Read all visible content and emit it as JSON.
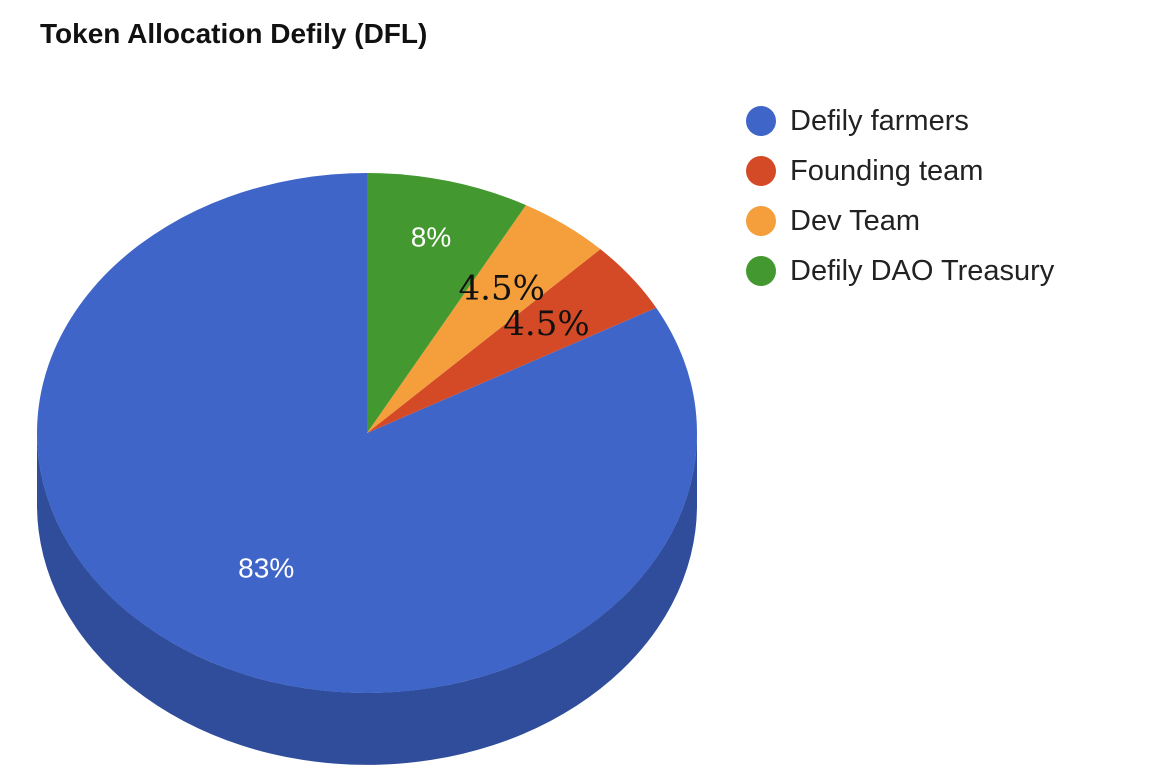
{
  "chart_data": {
    "type": "pie",
    "title": "Token Allocation Defily (DFL)",
    "legend_position": "right",
    "start_angle_deg": 0,
    "slices": [
      {
        "name": "Defily farmers",
        "value": 83,
        "label": "83%",
        "color": "#3f65c8",
        "side_color": "#2f4d9b",
        "label_color": "#ffffff",
        "label_style": "upright"
      },
      {
        "name": "Founding team",
        "value": 4.5,
        "label": "4.5%",
        "color": "#d44a26",
        "side_color": "#a3391d",
        "label_color": "#111111",
        "label_style": "rotated"
      },
      {
        "name": "Dev Team",
        "value": 4.5,
        "label": "4.5%",
        "color": "#f59e3c",
        "side_color": "#c47d2f",
        "label_color": "#111111",
        "label_style": "rotated"
      },
      {
        "name": "Defily DAO Treasury",
        "value": 8,
        "label": "8%",
        "color": "#43992f",
        "side_color": "#337524",
        "label_color": "#ffffff",
        "label_style": "upright"
      }
    ]
  }
}
